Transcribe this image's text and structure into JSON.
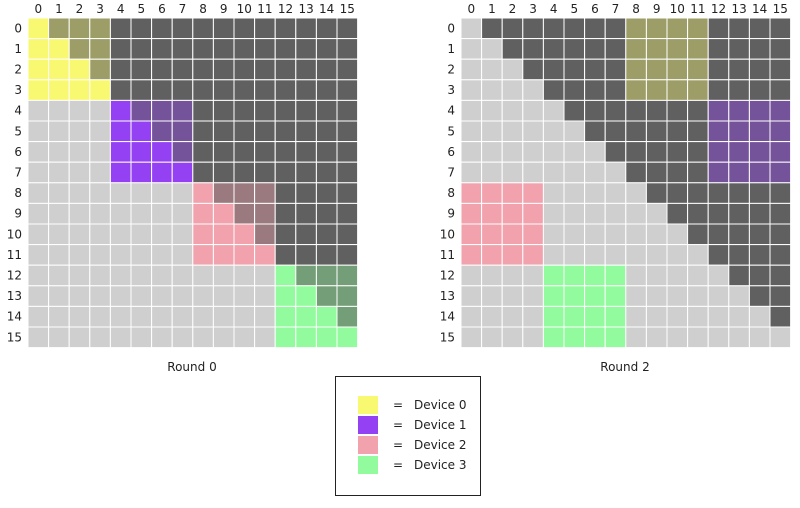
{
  "colors": {
    "masked": "#606060",
    "unmasked": "#cfcfcf",
    "grid_line": "#ffffff"
  },
  "matrices": [
    {
      "caption": "Round 0",
      "size": 16,
      "blocks": [
        {
          "device": 0,
          "rows": [
            0,
            3
          ],
          "cols": [
            0,
            3
          ]
        },
        {
          "device": 1,
          "rows": [
            4,
            7
          ],
          "cols": [
            4,
            7
          ]
        },
        {
          "device": 2,
          "rows": [
            8,
            11
          ],
          "cols": [
            8,
            11
          ]
        },
        {
          "device": 3,
          "rows": [
            12,
            15
          ],
          "cols": [
            12,
            15
          ]
        }
      ]
    },
    {
      "caption": "Round 2",
      "size": 16,
      "blocks": [
        {
          "device": 0,
          "rows": [
            0,
            3
          ],
          "cols": [
            8,
            11
          ]
        },
        {
          "device": 1,
          "rows": [
            4,
            7
          ],
          "cols": [
            12,
            15
          ]
        },
        {
          "device": 2,
          "rows": [
            8,
            11
          ],
          "cols": [
            0,
            3
          ]
        },
        {
          "device": 3,
          "rows": [
            12,
            15
          ],
          "cols": [
            4,
            7
          ]
        }
      ]
    }
  ],
  "legend": {
    "items": [
      {
        "symbol": "=",
        "label": "Device 0",
        "color": "#f9f871"
      },
      {
        "symbol": "=",
        "label": "Device 1",
        "color": "#9440f3"
      },
      {
        "symbol": "=",
        "label": "Device 2",
        "color": "#f2a2ac"
      },
      {
        "symbol": "=",
        "label": "Device 3",
        "color": "#92fb9d"
      }
    ]
  }
}
